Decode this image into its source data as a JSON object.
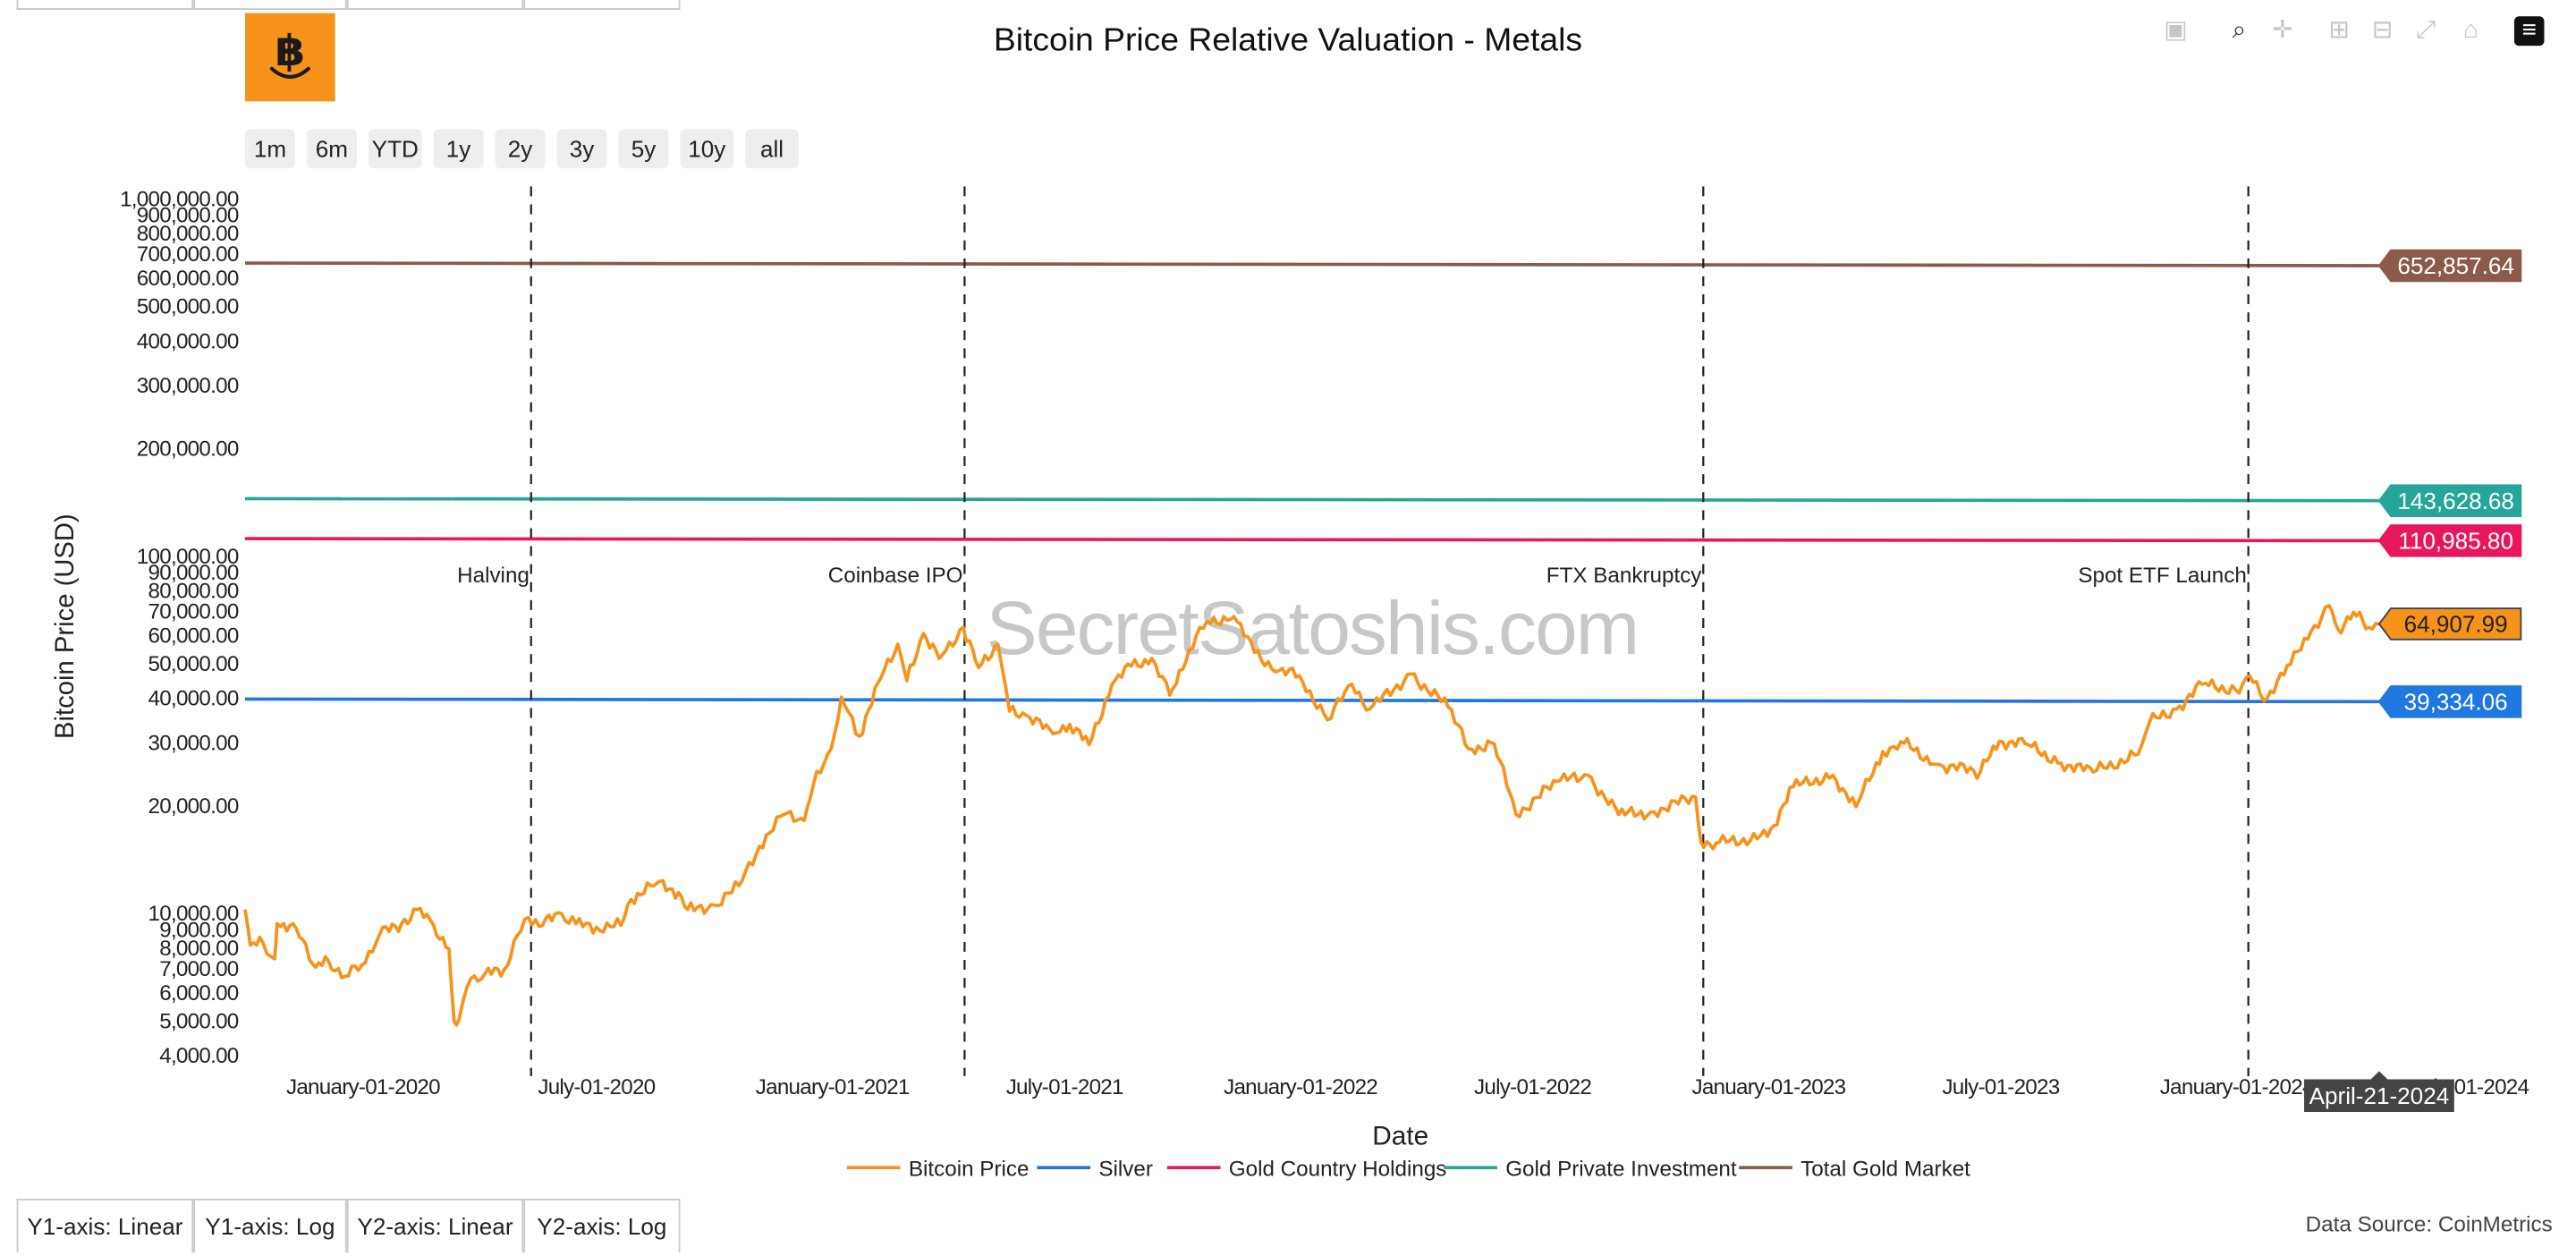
{
  "page_title": "Bitcoin Price Relative Valuation - Metals",
  "logo_icon": "bitcoin-smile-icon",
  "modebar": [
    {
      "name": "camera-icon",
      "glyph": "▣"
    },
    {
      "name": "zoom-icon",
      "glyph": "⌕"
    },
    {
      "name": "pan-icon",
      "glyph": "✛"
    },
    {
      "name": "zoom-in-icon",
      "glyph": "⊞"
    },
    {
      "name": "zoom-out-icon",
      "glyph": "⊟"
    },
    {
      "name": "autoscale-icon",
      "glyph": "⤢"
    },
    {
      "name": "home-icon",
      "glyph": "⌂"
    },
    {
      "name": "plotly-logo-icon",
      "glyph": "≡"
    }
  ],
  "range_buttons": [
    "1m",
    "6m",
    "YTD",
    "1y",
    "2y",
    "3y",
    "5y",
    "10y",
    "all"
  ],
  "axis_buttons": [
    "Y1-axis: Linear",
    "Y1-axis: Log",
    "Y2-axis: Linear",
    "Y2-axis: Log"
  ],
  "data_source": "Data Source: CoinMetrics",
  "watermark": "SecretSatoshis.com",
  "hover_label": "April-21-2024",
  "chart_data": {
    "type": "line",
    "title": "Bitcoin Price Relative Valuation - Metals",
    "xlabel": "Date",
    "ylabel": "Bitcoin Price (USD)",
    "y_scale": "log",
    "ylim": [
      4000,
      1000000
    ],
    "xlim": [
      "2019-10-01",
      "2024-04-21"
    ],
    "grid": false,
    "legend_position": "bottom-center",
    "y_ticks": [
      {
        "value": 4000,
        "label": "4,000.00"
      },
      {
        "value": 5000,
        "label": "5,000.00"
      },
      {
        "value": 6000,
        "label": "6,000.00"
      },
      {
        "value": 7000,
        "label": "7,000.00"
      },
      {
        "value": 8000,
        "label": "8,000.00"
      },
      {
        "value": 9000,
        "label": "9,000.00"
      },
      {
        "value": 10000,
        "label": "10,000.00"
      },
      {
        "value": 20000,
        "label": "20,000.00"
      },
      {
        "value": 30000,
        "label": "30,000.00"
      },
      {
        "value": 40000,
        "label": "40,000.00"
      },
      {
        "value": 50000,
        "label": "50,000.00"
      },
      {
        "value": 60000,
        "label": "60,000.00"
      },
      {
        "value": 70000,
        "label": "70,000.00"
      },
      {
        "value": 80000,
        "label": "80,000.00"
      },
      {
        "value": 90000,
        "label": "90,000.00"
      },
      {
        "value": 100000,
        "label": "100,000.00"
      },
      {
        "value": 200000,
        "label": "200,000.00"
      },
      {
        "value": 300000,
        "label": "300,000.00"
      },
      {
        "value": 400000,
        "label": "400,000.00"
      },
      {
        "value": 500000,
        "label": "500,000.00"
      },
      {
        "value": 600000,
        "label": "600,000.00"
      },
      {
        "value": 700000,
        "label": "700,000.00"
      },
      {
        "value": 800000,
        "label": "800,000.00"
      },
      {
        "value": 900000,
        "label": "900,000.00"
      },
      {
        "value": 1000000,
        "label": "1,000,000.00"
      }
    ],
    "x_ticks": [
      {
        "date": "2020-01-01",
        "label": "January-01-2020"
      },
      {
        "date": "2020-07-01",
        "label": "July-01-2020"
      },
      {
        "date": "2021-01-01",
        "label": "January-01-2021"
      },
      {
        "date": "2021-07-01",
        "label": "July-01-2021"
      },
      {
        "date": "2022-01-01",
        "label": "January-01-2022"
      },
      {
        "date": "2022-07-01",
        "label": "July-01-2022"
      },
      {
        "date": "2023-01-01",
        "label": "January-01-2023"
      },
      {
        "date": "2023-07-01",
        "label": "July-01-2023"
      },
      {
        "date": "2024-01-01",
        "label": "January-01-2024"
      },
      {
        "date": "2024-07-01",
        "label": "July-01-2024"
      }
    ],
    "events": [
      {
        "date": "2020-05-11",
        "label": "Halving"
      },
      {
        "date": "2021-04-14",
        "label": "Coinbase IPO"
      },
      {
        "date": "2022-11-11",
        "label": "FTX Bankruptcy"
      },
      {
        "date": "2024-01-10",
        "label": "Spot ETF Launch"
      }
    ],
    "series": [
      {
        "name": "Bitcoin Price",
        "color": "#f7931a",
        "last_value": 64907.99,
        "last_label": "64,907.99",
        "points": [
          [
            "2019-10-01",
            10300
          ],
          [
            "2019-10-05",
            8200
          ],
          [
            "2019-10-15",
            8300
          ],
          [
            "2019-10-24",
            7500
          ],
          [
            "2019-10-26",
            9400
          ],
          [
            "2019-11-05",
            9300
          ],
          [
            "2019-11-15",
            8500
          ],
          [
            "2019-11-25",
            7100
          ],
          [
            "2019-12-05",
            7400
          ],
          [
            "2019-12-18",
            6700
          ],
          [
            "2019-12-31",
            7200
          ],
          [
            "2020-01-14",
            8800
          ],
          [
            "2020-01-31",
            9400
          ],
          [
            "2020-02-12",
            10300
          ],
          [
            "2020-02-25",
            9300
          ],
          [
            "2020-03-08",
            8000
          ],
          [
            "2020-03-12",
            5000
          ],
          [
            "2020-03-16",
            5100
          ],
          [
            "2020-03-25",
            6600
          ],
          [
            "2020-04-05",
            6800
          ],
          [
            "2020-04-20",
            7000
          ],
          [
            "2020-04-30",
            8700
          ],
          [
            "2020-05-09",
            9800
          ],
          [
            "2020-05-20",
            9300
          ],
          [
            "2020-06-01",
            10100
          ],
          [
            "2020-06-15",
            9400
          ],
          [
            "2020-07-01",
            9200
          ],
          [
            "2020-07-20",
            9300
          ],
          [
            "2020-07-28",
            11000
          ],
          [
            "2020-08-17",
            12200
          ],
          [
            "2020-09-03",
            11500
          ],
          [
            "2020-09-10",
            10300
          ],
          [
            "2020-10-01",
            10600
          ],
          [
            "2020-10-20",
            12000
          ],
          [
            "2020-11-05",
            15500
          ],
          [
            "2020-11-24",
            19000
          ],
          [
            "2020-12-10",
            18300
          ],
          [
            "2020-12-17",
            23000
          ],
          [
            "2020-12-31",
            29000
          ],
          [
            "2021-01-08",
            40500
          ],
          [
            "2021-01-22",
            31500
          ],
          [
            "2021-02-08",
            46000
          ],
          [
            "2021-02-21",
            57000
          ],
          [
            "2021-02-28",
            45000
          ],
          [
            "2021-03-13",
            61000
          ],
          [
            "2021-03-25",
            52000
          ],
          [
            "2021-04-13",
            63500
          ],
          [
            "2021-04-25",
            49000
          ],
          [
            "2021-05-10",
            57000
          ],
          [
            "2021-05-19",
            37000
          ],
          [
            "2021-06-01",
            36000
          ],
          [
            "2021-06-22",
            32000
          ],
          [
            "2021-07-05",
            34000
          ],
          [
            "2021-07-20",
            29800
          ],
          [
            "2021-08-07",
            44000
          ],
          [
            "2021-08-22",
            49500
          ],
          [
            "2021-09-07",
            52000
          ],
          [
            "2021-09-21",
            41000
          ],
          [
            "2021-10-06",
            55000
          ],
          [
            "2021-10-20",
            66000
          ],
          [
            "2021-11-10",
            68000
          ],
          [
            "2021-11-26",
            54000
          ],
          [
            "2021-12-15",
            48000
          ],
          [
            "2021-12-31",
            46500
          ],
          [
            "2022-01-22",
            35000
          ],
          [
            "2022-02-10",
            44000
          ],
          [
            "2022-02-24",
            37500
          ],
          [
            "2022-03-28",
            47000
          ],
          [
            "2022-04-26",
            38000
          ],
          [
            "2022-05-12",
            29000
          ],
          [
            "2022-06-01",
            30000
          ],
          [
            "2022-06-18",
            19000
          ],
          [
            "2022-07-20",
            23500
          ],
          [
            "2022-08-13",
            24500
          ],
          [
            "2022-09-06",
            19000
          ],
          [
            "2022-10-01",
            19300
          ],
          [
            "2022-11-05",
            21300
          ],
          [
            "2022-11-09",
            16000
          ],
          [
            "2022-11-21",
            15800
          ],
          [
            "2022-12-31",
            16500
          ],
          [
            "2023-01-20",
            22700
          ],
          [
            "2023-02-20",
            24500
          ],
          [
            "2023-03-10",
            20000
          ],
          [
            "2023-03-31",
            28500
          ],
          [
            "2023-04-14",
            30400
          ],
          [
            "2023-05-12",
            26300
          ],
          [
            "2023-06-15",
            25000
          ],
          [
            "2023-06-30",
            30500
          ],
          [
            "2023-07-20",
            30000
          ],
          [
            "2023-08-17",
            26500
          ],
          [
            "2023-09-11",
            25000
          ],
          [
            "2023-10-16",
            28000
          ],
          [
            "2023-10-25",
            34500
          ],
          [
            "2023-11-15",
            37500
          ],
          [
            "2023-12-05",
            44000
          ],
          [
            "2023-12-31",
            42500
          ],
          [
            "2024-01-11",
            46500
          ],
          [
            "2024-01-22",
            39500
          ],
          [
            "2024-02-12",
            50000
          ],
          [
            "2024-02-28",
            62000
          ],
          [
            "2024-03-13",
            73000
          ],
          [
            "2024-03-20",
            62500
          ],
          [
            "2024-04-01",
            70000
          ],
          [
            "2024-04-13",
            63500
          ],
          [
            "2024-04-21",
            64907.99
          ]
        ]
      },
      {
        "name": "Silver",
        "color": "#1f77e0",
        "last_value": 39334.06,
        "last_label": "39,334.06",
        "points": [
          [
            "2019-10-01",
            40000
          ],
          [
            "2024-04-21",
            39334.06
          ]
        ]
      },
      {
        "name": "Gold Country Holdings",
        "color": "#e8175d",
        "last_value": 110985.8,
        "last_label": "110,985.80",
        "points": [
          [
            "2019-10-01",
            112500
          ],
          [
            "2024-04-21",
            110985.8
          ]
        ]
      },
      {
        "name": "Gold Private Investment",
        "color": "#26a69a",
        "last_value": 143628.68,
        "last_label": "143,628.68",
        "points": [
          [
            "2019-10-01",
            145500
          ],
          [
            "2024-04-21",
            143628.68
          ]
        ]
      },
      {
        "name": "Total Gold Market",
        "color": "#8b5a4a",
        "last_value": 652857.64,
        "last_label": "652,857.64",
        "points": [
          [
            "2019-10-01",
            664000
          ],
          [
            "2024-04-21",
            652857.64
          ]
        ]
      }
    ]
  }
}
